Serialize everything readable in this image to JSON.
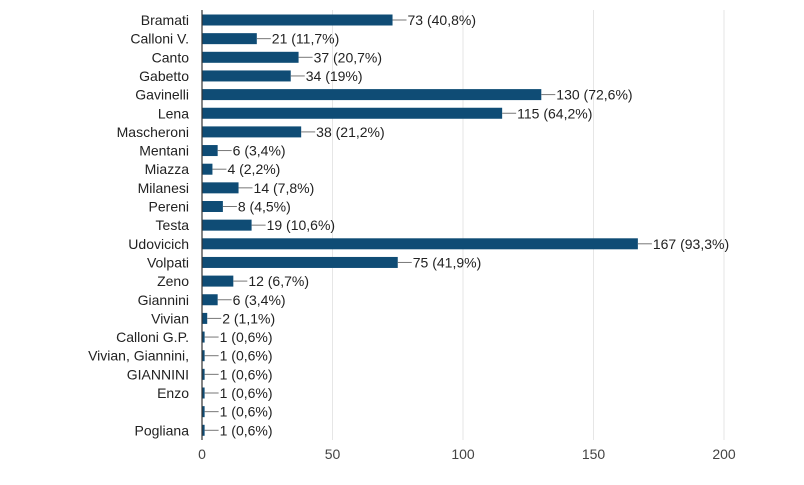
{
  "chart_data": {
    "type": "bar",
    "orientation": "horizontal",
    "title": "",
    "xlabel": "",
    "ylabel": "",
    "xlim": [
      0,
      200
    ],
    "ticks": [
      0,
      50,
      100,
      150,
      200
    ],
    "tick_labels": [
      "0",
      "50",
      "100",
      "150",
      "200"
    ],
    "grid": true,
    "bar_color": "#0f4c75",
    "categories": [
      "Bramati",
      "Calloni V.",
      "Canto",
      "Gabetto",
      "Gavinelli",
      "Lena",
      "Mascheroni",
      "Mentani",
      "Miazza",
      "Milanesi",
      "Pereni",
      "Testa",
      "Udovicich",
      "Volpati",
      "Zeno",
      "Giannini",
      "Vivian",
      "Calloni G.P.",
      "Vivian, Giannini,",
      "GIANNINI",
      "Enzo",
      "",
      "Pogliana"
    ],
    "values": [
      73,
      21,
      37,
      34,
      130,
      115,
      38,
      6,
      4,
      14,
      8,
      19,
      167,
      75,
      12,
      6,
      2,
      1,
      1,
      1,
      1,
      1,
      1
    ],
    "data_labels": [
      "73 (40,8%)",
      "21 (11,7%)",
      "37 (20,7%)",
      "34 (19%)",
      "130 (72,6%)",
      "115 (64,2%)",
      "38 (21,2%)",
      "6 (3,4%)",
      "4 (2,2%)",
      "14 (7,8%)",
      "8 (4,5%)",
      "19 (10,6%)",
      "167 (93,3%)",
      "75 (41,9%)",
      "12 (6,7%)",
      "6 (3,4%)",
      "2 (1,1%)",
      "1 (0,6%)",
      "1 (0,6%)",
      "1 (0,6%)",
      "1 (0,6%)",
      "1 (0,6%)",
      "1 (0,6%)"
    ]
  }
}
